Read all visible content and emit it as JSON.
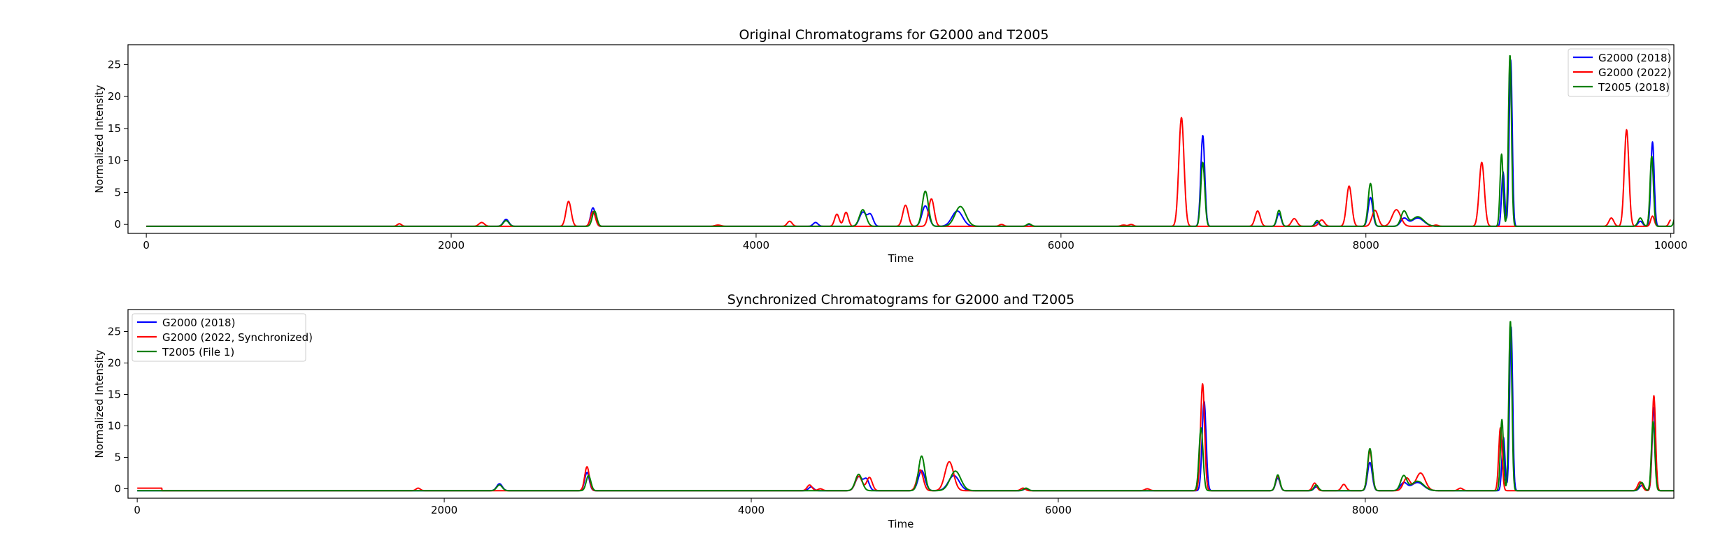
{
  "figure": {
    "background": "#ffffff"
  },
  "chart_data": [
    {
      "type": "line",
      "title": "Original Chromatograms for G2000 and T2005",
      "xlabel": "Time",
      "ylabel": "Normalized Intensity",
      "xlim": [
        -120,
        10020
      ],
      "ylim": [
        -1.4,
        28.1
      ],
      "xticks": [
        0,
        2000,
        4000,
        6000,
        8000,
        10000
      ],
      "yticks": [
        0,
        5,
        10,
        15,
        20,
        25
      ],
      "legend_location": "upper right",
      "grid": false,
      "series": [
        {
          "name": "G2000 (2018)",
          "color": "#0000ff",
          "x_range": [
            0,
            10000
          ],
          "baseline": -0.3,
          "peaks": [
            [
              2360,
              1.1,
              18
            ],
            [
              2930,
              2.9,
              15
            ],
            [
              4390,
              0.6,
              16
            ],
            [
              4700,
              2.2,
              22
            ],
            [
              4750,
              1.8,
              18
            ],
            [
              5110,
              3.2,
              22
            ],
            [
              5320,
              2.4,
              35
            ],
            [
              5790,
              0.3,
              15
            ],
            [
              6930,
              14.2,
              13
            ],
            [
              7430,
              2.0,
              14
            ],
            [
              7680,
              0.6,
              14
            ],
            [
              8030,
              4.5,
              15
            ],
            [
              8250,
              1.2,
              22
            ],
            [
              8340,
              1.3,
              40
            ],
            [
              8900,
              8.5,
              10
            ],
            [
              8950,
              26.0,
              10
            ],
            [
              9800,
              0.8,
              15
            ],
            [
              9880,
              13.2,
              11
            ]
          ]
        },
        {
          "name": "G2000 (2022)",
          "color": "#ff0000",
          "x_range": [
            0,
            10000
          ],
          "baseline": -0.3,
          "peaks": [
            [
              1660,
              0.4,
              14
            ],
            [
              2200,
              0.6,
              18
            ],
            [
              2770,
              3.9,
              17
            ],
            [
              2930,
              2.3,
              16
            ],
            [
              3750,
              0.2,
              20
            ],
            [
              4220,
              0.8,
              16
            ],
            [
              4530,
              1.9,
              15
            ],
            [
              4590,
              2.2,
              15
            ],
            [
              4980,
              3.3,
              18
            ],
            [
              5150,
              4.3,
              18
            ],
            [
              5610,
              0.3,
              15
            ],
            [
              6410,
              0.2,
              16
            ],
            [
              6460,
              0.3,
              15
            ],
            [
              6790,
              17.0,
              17
            ],
            [
              7290,
              2.4,
              17
            ],
            [
              7530,
              1.2,
              18
            ],
            [
              7710,
              1.0,
              18
            ],
            [
              7890,
              6.3,
              17
            ],
            [
              8060,
              2.5,
              20
            ],
            [
              8200,
              2.6,
              28
            ],
            [
              8460,
              0.2,
              15
            ],
            [
              8760,
              10.0,
              17
            ],
            [
              9610,
              1.3,
              16
            ],
            [
              9710,
              15.1,
              15
            ],
            [
              9880,
              1.6,
              12
            ],
            [
              10000,
              1.0,
              12
            ]
          ]
        },
        {
          "name": "T2005 (2018)",
          "color": "#008000",
          "x_range": [
            0,
            10030
          ],
          "baseline": -0.3,
          "peaks": [
            [
              2360,
              0.9,
              18
            ],
            [
              2940,
              2.4,
              15
            ],
            [
              4700,
              2.6,
              22
            ],
            [
              5110,
              5.5,
              20
            ],
            [
              5340,
              3.1,
              35
            ],
            [
              5790,
              0.4,
              15
            ],
            [
              6930,
              10.0,
              13
            ],
            [
              7430,
              2.5,
              14
            ],
            [
              7680,
              0.9,
              14
            ],
            [
              8030,
              6.7,
              15
            ],
            [
              8250,
              2.3,
              20
            ],
            [
              8340,
              1.5,
              40
            ],
            [
              8890,
              11.3,
              10
            ],
            [
              8945,
              26.8,
              10
            ],
            [
              9800,
              1.3,
              15
            ],
            [
              9875,
              11.0,
              11
            ],
            [
              10030,
              1.5,
              10
            ]
          ]
        }
      ]
    },
    {
      "type": "line",
      "title": "Synchronized Chromatograms for G2000 and T2005",
      "xlabel": "Time",
      "ylabel": "Normalized Intensity",
      "xlim": [
        -60,
        10010
      ],
      "ylim": [
        -1.5,
        28.5
      ],
      "xticks": [
        0,
        2000,
        4000,
        6000,
        8000
      ],
      "yticks": [
        0,
        5,
        10,
        15,
        20,
        25
      ],
      "legend_location": "upper left",
      "grid": false,
      "series": [
        {
          "name": "G2000 (2018)",
          "color": "#0000ff",
          "x_range": [
            0,
            10010
          ],
          "baseline": -0.3,
          "peaks": [
            [
              2360,
              1.1,
              18
            ],
            [
              2930,
              2.9,
              15
            ],
            [
              4390,
              0.6,
              16
            ],
            [
              4700,
              2.2,
              22
            ],
            [
              4750,
              1.8,
              18
            ],
            [
              5110,
              3.2,
              22
            ],
            [
              5320,
              2.4,
              35
            ],
            [
              5790,
              0.3,
              15
            ],
            [
              6950,
              14.2,
              13
            ],
            [
              7430,
              2.0,
              14
            ],
            [
              7680,
              0.6,
              14
            ],
            [
              8030,
              4.5,
              15
            ],
            [
              8250,
              1.2,
              22
            ],
            [
              8340,
              1.3,
              40
            ],
            [
              8900,
              8.5,
              10
            ],
            [
              8950,
              26.0,
              10
            ],
            [
              9800,
              0.8,
              15
            ],
            [
              9880,
              13.2,
              11
            ]
          ]
        },
        {
          "name": "G2000 (2022, Synchronized)",
          "color": "#ff0000",
          "x_range": [
            0,
            10010
          ],
          "baseline": -0.3,
          "plateau": {
            "x0": 0,
            "x1": 160,
            "value": 0.1
          },
          "peaks": [
            [
              1830,
              0.4,
              14
            ],
            [
              2930,
              3.8,
              15
            ],
            [
              4380,
              0.9,
              16
            ],
            [
              4450,
              0.3,
              15
            ],
            [
              4700,
              2.3,
              22
            ],
            [
              4770,
              2.1,
              18
            ],
            [
              5100,
              3.3,
              20
            ],
            [
              5290,
              4.6,
              28
            ],
            [
              5770,
              0.4,
              15
            ],
            [
              6580,
              0.3,
              16
            ],
            [
              6940,
              17.0,
              13
            ],
            [
              7430,
              2.3,
              14
            ],
            [
              7670,
              1.2,
              14
            ],
            [
              7860,
              1.0,
              15
            ],
            [
              8030,
              6.3,
              15
            ],
            [
              8270,
              2.0,
              22
            ],
            [
              8360,
              2.8,
              30
            ],
            [
              8620,
              0.4,
              15
            ],
            [
              8880,
              10.0,
              11
            ],
            [
              9790,
              1.4,
              15
            ],
            [
              9880,
              15.1,
              11
            ]
          ]
        },
        {
          "name": "T2005 (File 1)",
          "color": "#008000",
          "x_range": [
            0,
            10010
          ],
          "baseline": -0.3,
          "peaks": [
            [
              2360,
              0.9,
              18
            ],
            [
              2940,
              2.4,
              15
            ],
            [
              4700,
              2.6,
              22
            ],
            [
              5110,
              5.5,
              20
            ],
            [
              5330,
              3.1,
              35
            ],
            [
              5790,
              0.4,
              15
            ],
            [
              6930,
              10.0,
              13
            ],
            [
              7430,
              2.5,
              14
            ],
            [
              7680,
              0.9,
              14
            ],
            [
              8030,
              6.7,
              15
            ],
            [
              8250,
              2.3,
              20
            ],
            [
              8340,
              1.5,
              40
            ],
            [
              8890,
              11.3,
              10
            ],
            [
              8945,
              27.0,
              10
            ],
            [
              9800,
              1.3,
              15
            ],
            [
              9875,
              11.0,
              11
            ]
          ]
        }
      ]
    }
  ]
}
